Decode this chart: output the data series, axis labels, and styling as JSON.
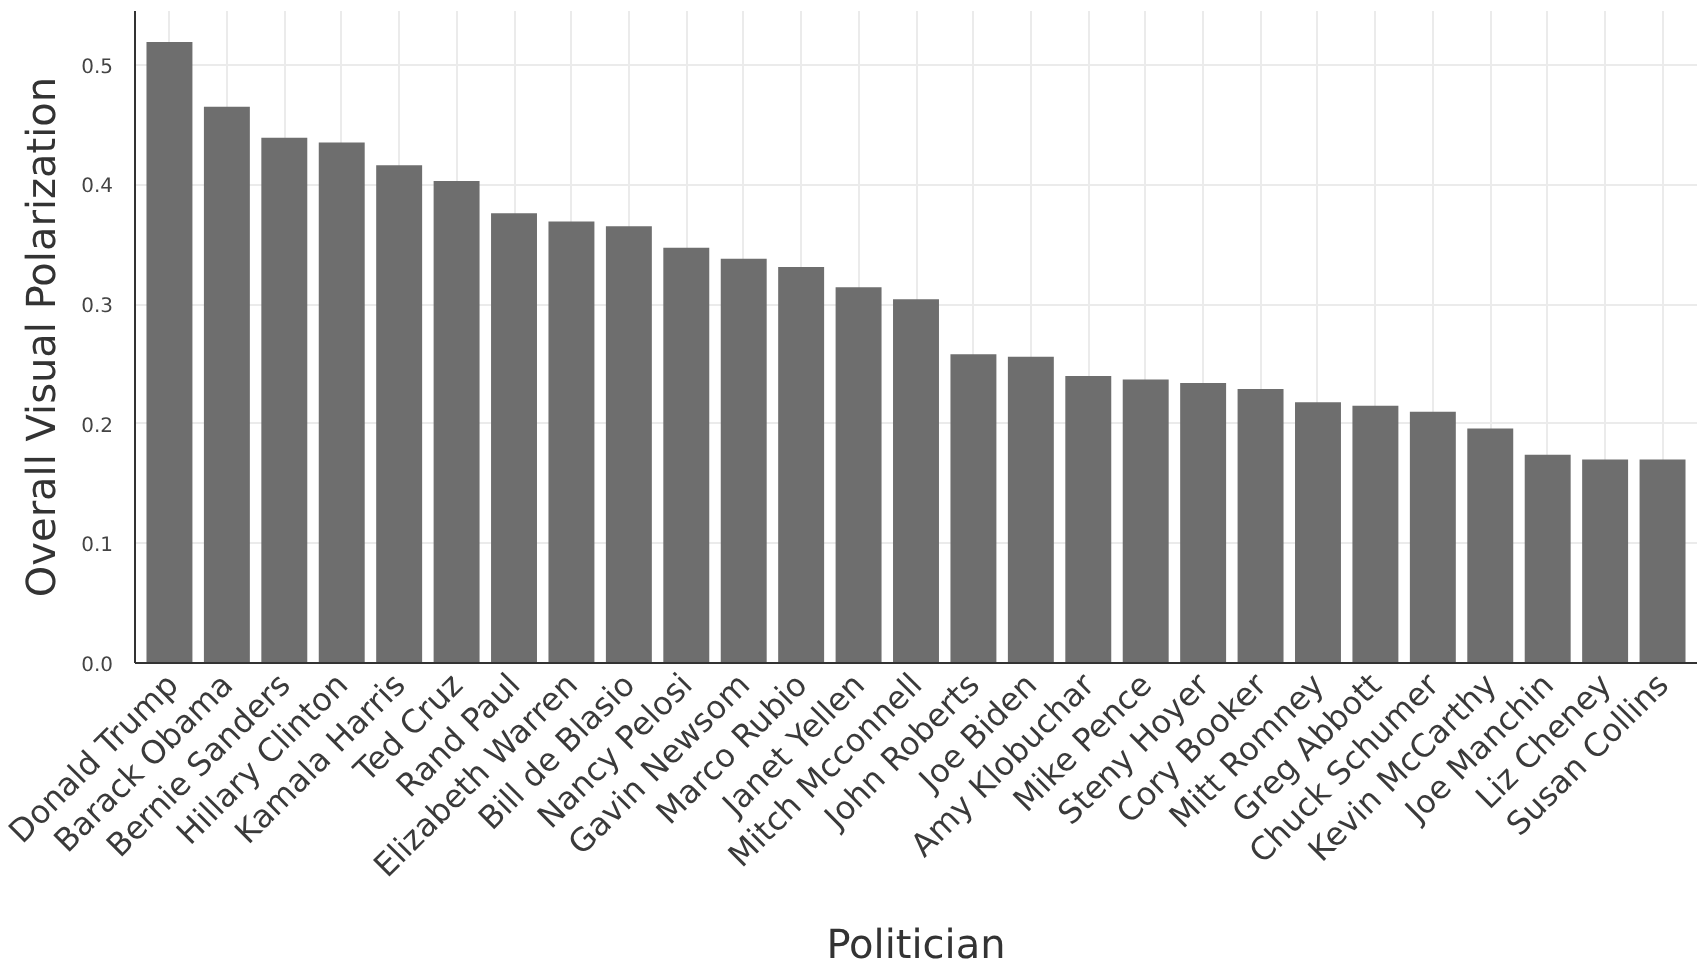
{
  "chart_data": {
    "type": "bar",
    "xlabel": "Politician",
    "ylabel": "Overall Visual Polarization",
    "categories": [
      "Donald Trump",
      "Barack Obama",
      "Bernie Sanders",
      "Hillary Clinton",
      "Kamala Harris",
      "Ted Cruz",
      "Rand Paul",
      "Elizabeth Warren",
      "Bill de Blasio",
      "Nancy Pelosi",
      "Gavin Newsom",
      "Marco Rubio",
      "Janet Yellen",
      "Mitch Mcconnell",
      "John Roberts",
      "Joe Biden",
      "Amy Klobuchar",
      "Mike Pence",
      "Steny Hoyer",
      "Cory Booker",
      "Mitt Romney",
      "Greg Abbott",
      "Chuck Schumer",
      "Kevin McCarthy",
      "Joe Manchin",
      "Liz Cheney",
      "Susan Collins"
    ],
    "values": [
      0.519,
      0.465,
      0.439,
      0.435,
      0.416,
      0.403,
      0.376,
      0.369,
      0.365,
      0.347,
      0.338,
      0.331,
      0.314,
      0.304,
      0.258,
      0.256,
      0.24,
      0.237,
      0.234,
      0.229,
      0.218,
      0.215,
      0.21,
      0.196,
      0.174,
      0.17,
      0.17
    ],
    "color": "#6e6e6e",
    "ylim": [
      0,
      0.545
    ],
    "yticks": [
      {
        "value": 0,
        "label": "0.0"
      },
      0.1,
      0.2,
      0.3,
      0.4,
      0.5
    ],
    "grid": true
  }
}
